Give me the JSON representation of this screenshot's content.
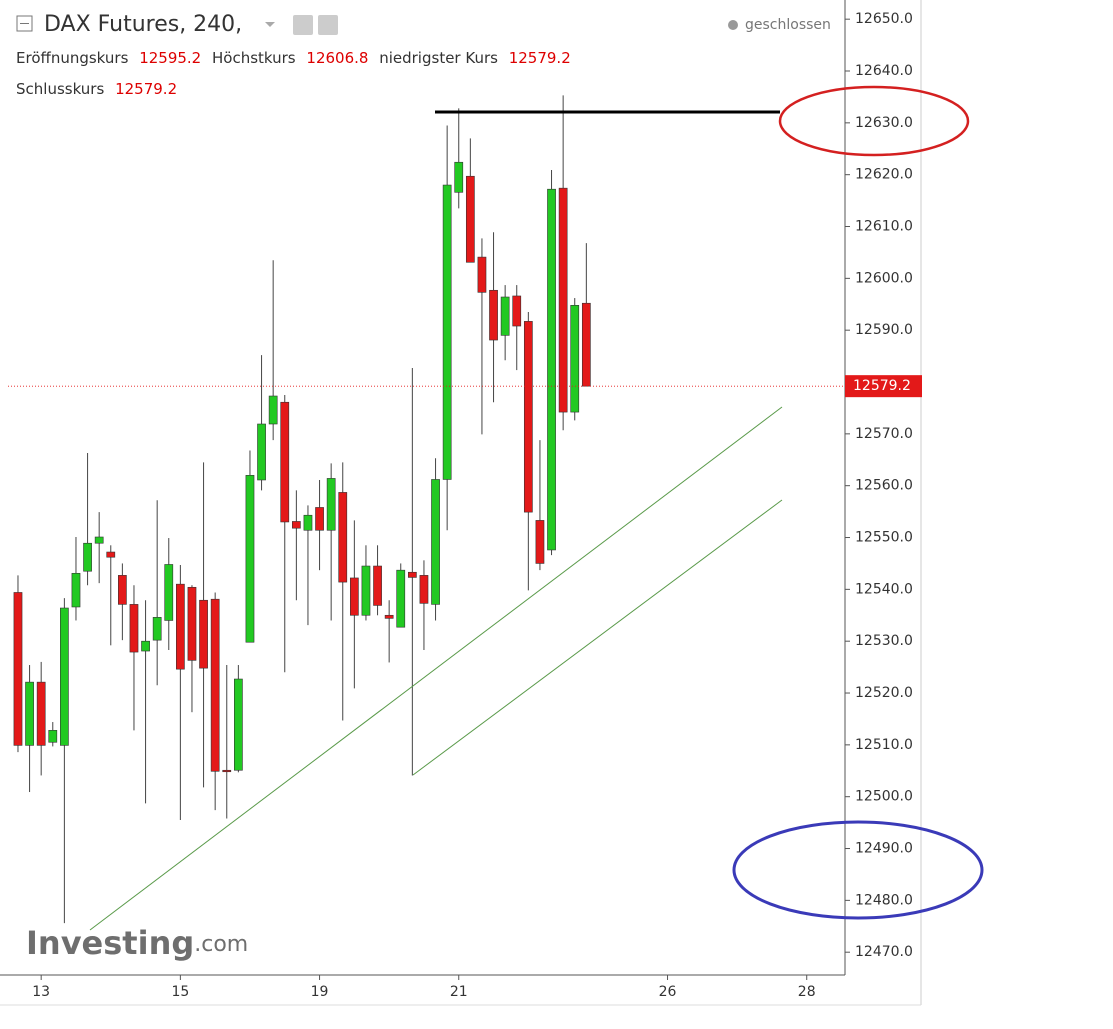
{
  "chart_data": {
    "type": "candlestick",
    "title": "DAX Futures, 240,",
    "status": "geschlossen",
    "ohlc_labels": [
      "Eröffnungskurs",
      "Höchstkurs",
      "niedrigster Kurs",
      "Schlusskurs"
    ],
    "watermark": [
      "Investing",
      ".com"
    ],
    "up_color": "#22c922",
    "down_color": "#e31919",
    "grid": false,
    "open": [
      12539.4,
      12509.9,
      12522.1,
      12510.5,
      12509.9,
      12536.6,
      12543.5,
      12548.9,
      12547.2,
      12542.7,
      12537.1,
      12528.1,
      12530.2,
      12534.0,
      12541.0,
      12540.4,
      12537.9,
      12538.1,
      12505.1,
      12505.1,
      12529.8,
      12561.1,
      12571.9,
      12576.1,
      12553.1,
      12551.4,
      12555.8,
      12551.4,
      12558.7,
      12542.2,
      12535.0,
      12544.5,
      12535.0,
      12532.7,
      12543.3,
      12542.7,
      12537.1,
      12561.2,
      12616.6,
      12619.7,
      12604.1,
      12597.7,
      12589.0,
      12596.6,
      12591.7,
      12553.3,
      12547.6,
      12617.4,
      12574.2,
      12595.2
    ],
    "high": [
      12542.7,
      12525.4,
      12526.0,
      12514.4,
      12538.3,
      12550.1,
      12566.3,
      12554.9,
      12548.5,
      12545.0,
      12540.8,
      12537.9,
      12557.2,
      12549.9,
      12544.7,
      12540.8,
      12564.5,
      12539.4,
      12525.4,
      12525.4,
      12566.8,
      12585.2,
      12603.5,
      12577.5,
      12559.1,
      12556.2,
      12561.1,
      12564.3,
      12564.5,
      12553.3,
      12548.5,
      12548.5,
      12537.9,
      12545.0,
      12582.7,
      12545.6,
      12565.3,
      12629.5,
      12632.8,
      12627.0,
      12607.7,
      12608.9,
      12598.7,
      12598.7,
      12593.5,
      12568.8,
      12620.9,
      12635.3,
      12596.2,
      12606.8
    ],
    "low": [
      12508.6,
      12500.9,
      12504.1,
      12509.7,
      12475.6,
      12534.0,
      12540.8,
      12541.2,
      12529.2,
      12530.2,
      12512.8,
      12498.7,
      12521.5,
      12528.3,
      12495.5,
      12516.3,
      12501.8,
      12497.4,
      12495.8,
      12504.7,
      12529.8,
      12559.1,
      12568.8,
      12524.0,
      12537.9,
      12533.1,
      12543.7,
      12534.0,
      12514.7,
      12520.9,
      12534.0,
      12535.0,
      12525.9,
      12532.7,
      12504.1,
      12528.3,
      12534.0,
      12551.4,
      12613.5,
      12603.1,
      12569.9,
      12576.1,
      12584.2,
      12582.3,
      12539.8,
      12543.7,
      12546.6,
      12570.7,
      12572.6,
      12579.2
    ],
    "close": [
      12509.9,
      12522.1,
      12509.9,
      12512.8,
      12536.4,
      12543.1,
      12548.9,
      12550.1,
      12546.2,
      12537.1,
      12527.9,
      12530.0,
      12534.6,
      12544.8,
      12524.6,
      12526.3,
      12524.8,
      12504.9,
      12504.9,
      12522.7,
      12562.0,
      12571.9,
      12577.3,
      12553.0,
      12551.8,
      12554.3,
      12551.4,
      12561.4,
      12541.4,
      12535.0,
      12544.5,
      12536.9,
      12534.4,
      12543.7,
      12542.3,
      12537.3,
      12561.2,
      12618.0,
      12622.4,
      12603.1,
      12597.3,
      12588.1,
      12596.4,
      12590.8,
      12554.9,
      12545.0,
      12617.2,
      12574.2,
      12594.8,
      12579.2
    ],
    "xlim": [
      -1.55,
      71.3
    ],
    "xticks": [
      {
        "value": 2,
        "label": "13"
      },
      {
        "value": 14,
        "label": "15"
      },
      {
        "value": 26,
        "label": "19"
      },
      {
        "value": 38,
        "label": "21"
      },
      {
        "value": 56,
        "label": "26"
      },
      {
        "value": 68,
        "label": "28"
      }
    ],
    "ylim": [
      12465.6,
      12653.7
    ],
    "yticks": [
      {
        "value": 12470,
        "label": "12470.0"
      },
      {
        "value": 12480,
        "label": "12480.0"
      },
      {
        "value": 12490,
        "label": "12490.0"
      },
      {
        "value": 12500,
        "label": "12500.0"
      },
      {
        "value": 12510,
        "label": "12510.0"
      },
      {
        "value": 12520,
        "label": "12520.0"
      },
      {
        "value": 12530,
        "label": "12530.0"
      },
      {
        "value": 12540,
        "label": "12540.0"
      },
      {
        "value": 12550,
        "label": "12550.0"
      },
      {
        "value": 12560,
        "label": "12560.0"
      },
      {
        "value": 12570,
        "label": "12570.0"
      },
      {
        "value": 12580,
        "label": "12580.0"
      },
      {
        "value": 12590,
        "label": "12590.0"
      },
      {
        "value": 12600,
        "label": "12600.0"
      },
      {
        "value": 12610,
        "label": "12610.0"
      },
      {
        "value": 12620,
        "label": "12620.0"
      },
      {
        "value": 12630,
        "label": "12630.0"
      },
      {
        "value": 12640,
        "label": "12640.0"
      },
      {
        "value": 12650,
        "label": "12650.0"
      }
    ]
  }
}
